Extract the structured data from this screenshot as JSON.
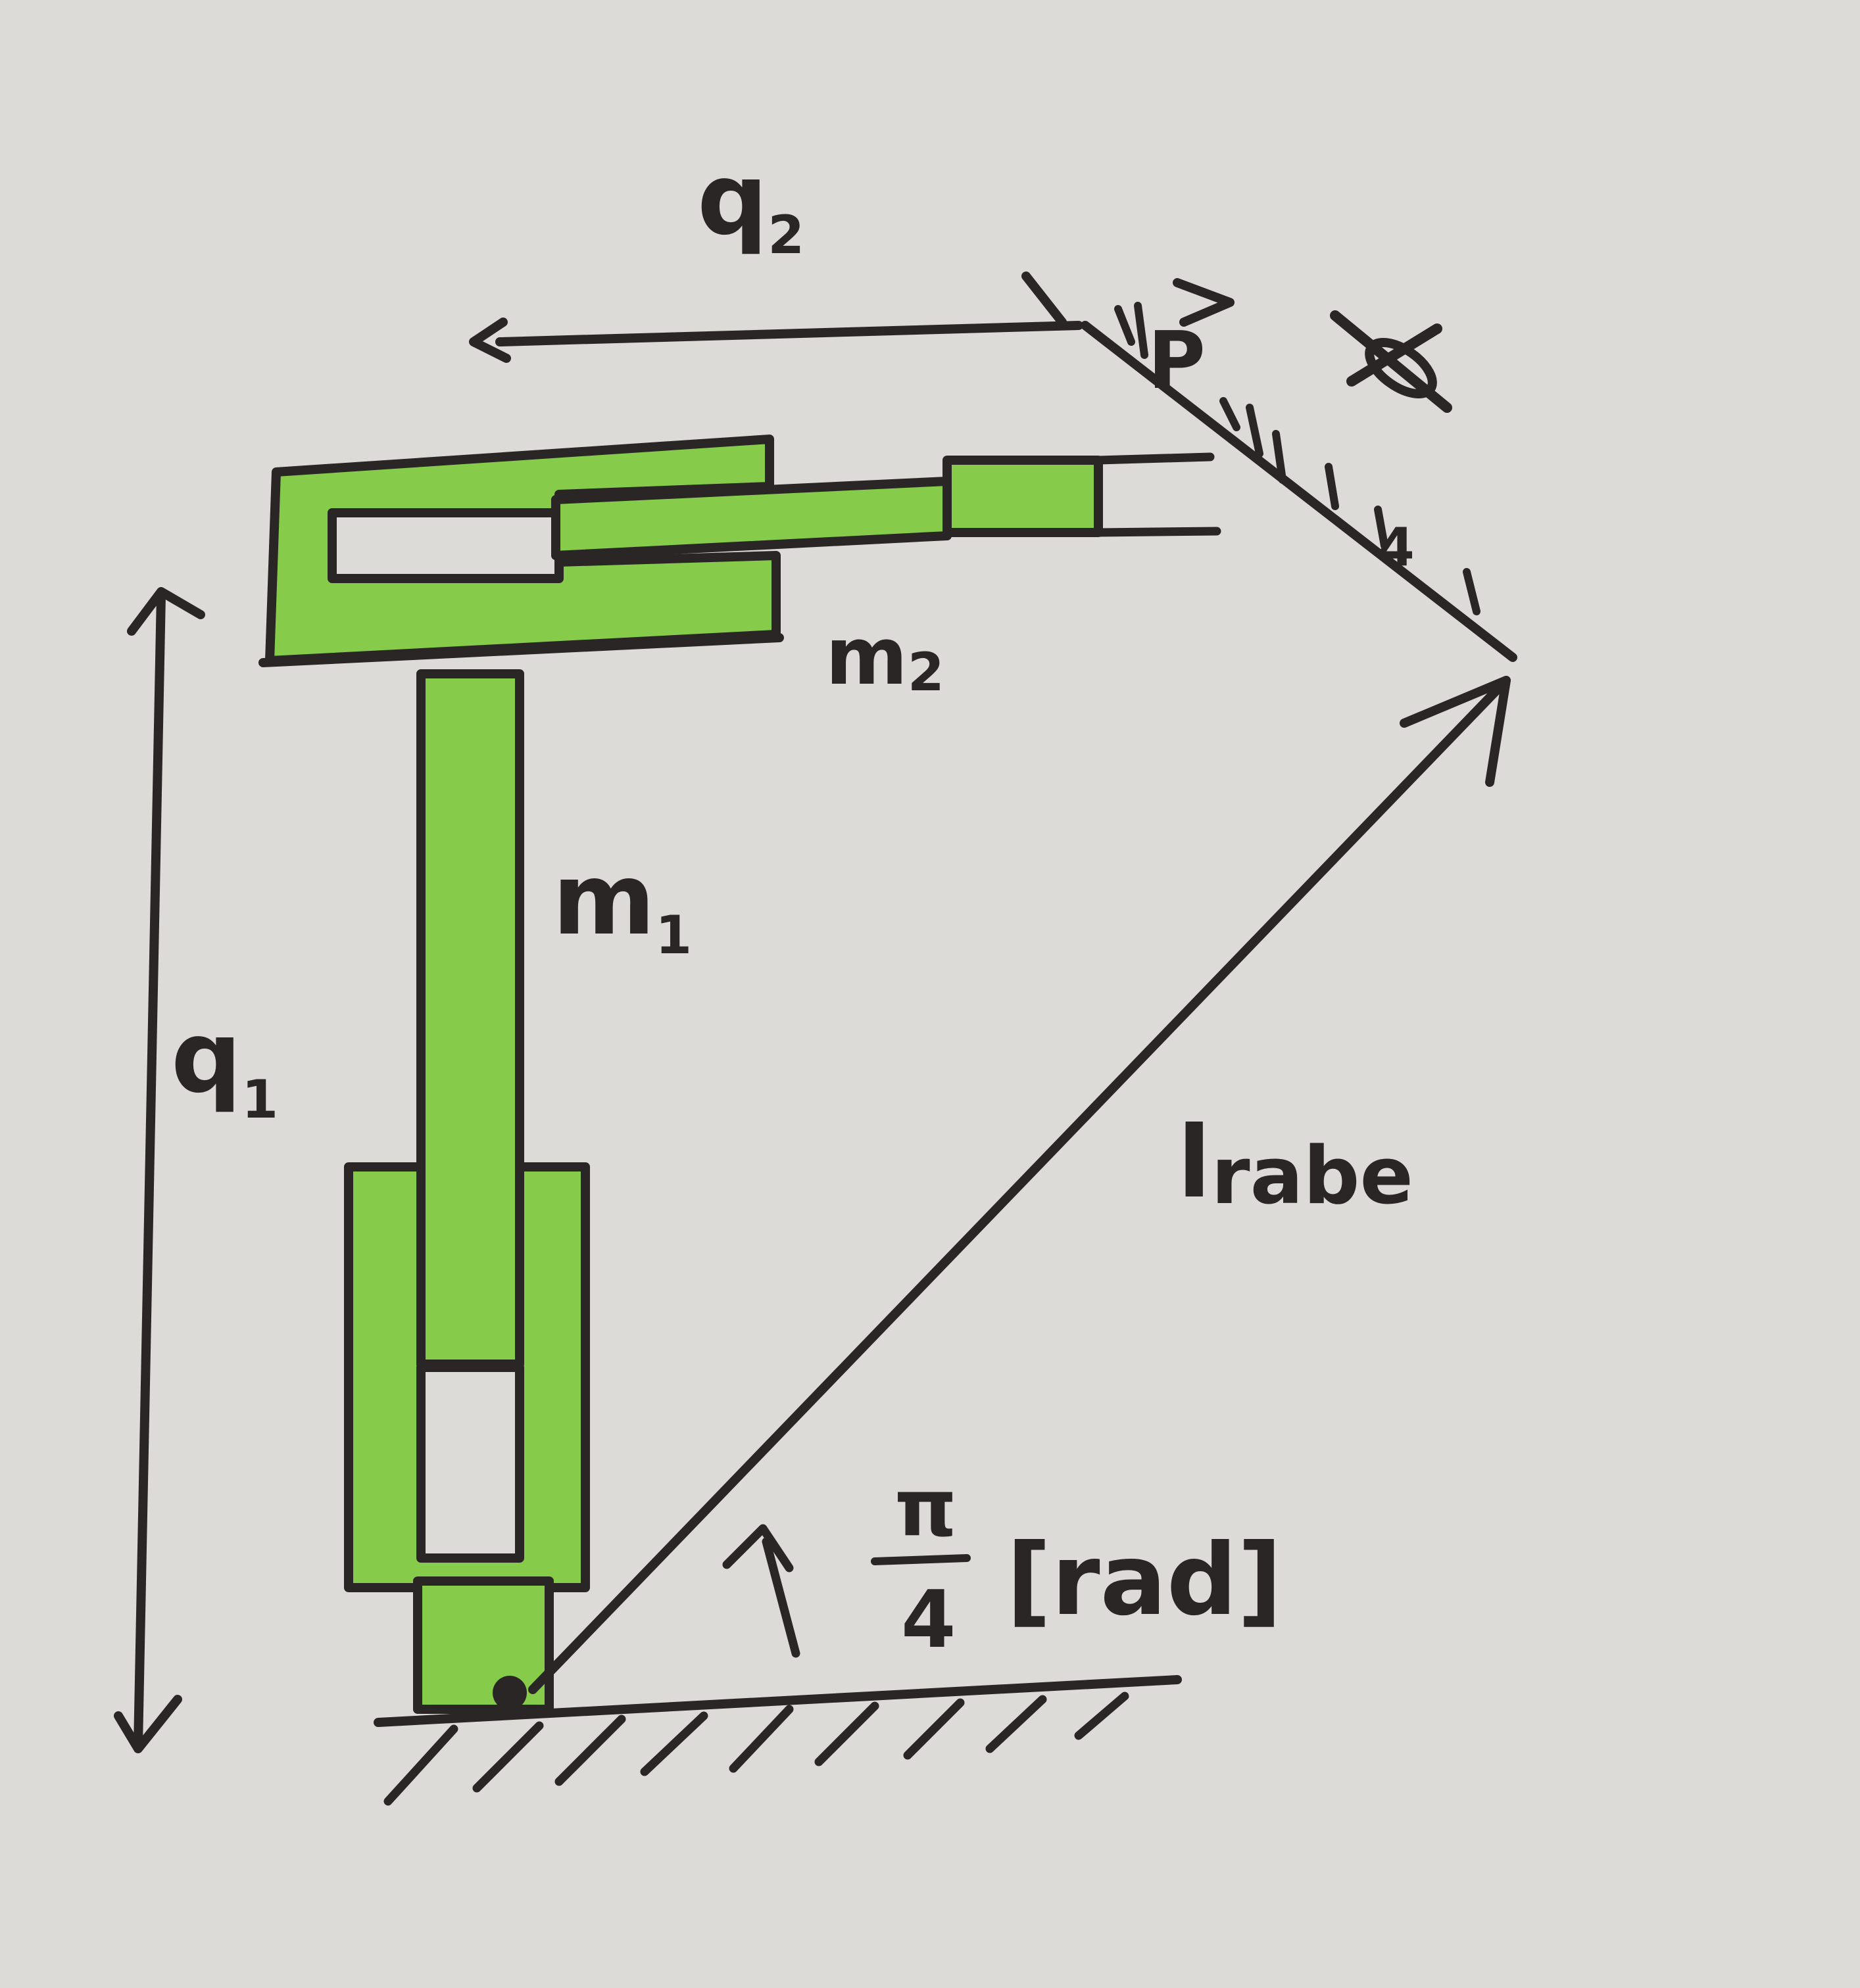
{
  "labels": {
    "q1": {
      "main": "q",
      "sub": "1"
    },
    "q2": {
      "main": "q",
      "sub": "2"
    },
    "m1": {
      "main": "m",
      "sub": "1"
    },
    "m2": {
      "main": "m",
      "sub": "2"
    },
    "l_rabe": {
      "main": "l",
      "sub": "rabe"
    },
    "angle": {
      "numerator": "π",
      "denominator": "4",
      "unit": "[rad]"
    },
    "point": "P",
    "length": "4"
  },
  "colors": {
    "paper": "#dcdbd8",
    "link_green": "#86cc4a",
    "ink": "#2a2626"
  }
}
